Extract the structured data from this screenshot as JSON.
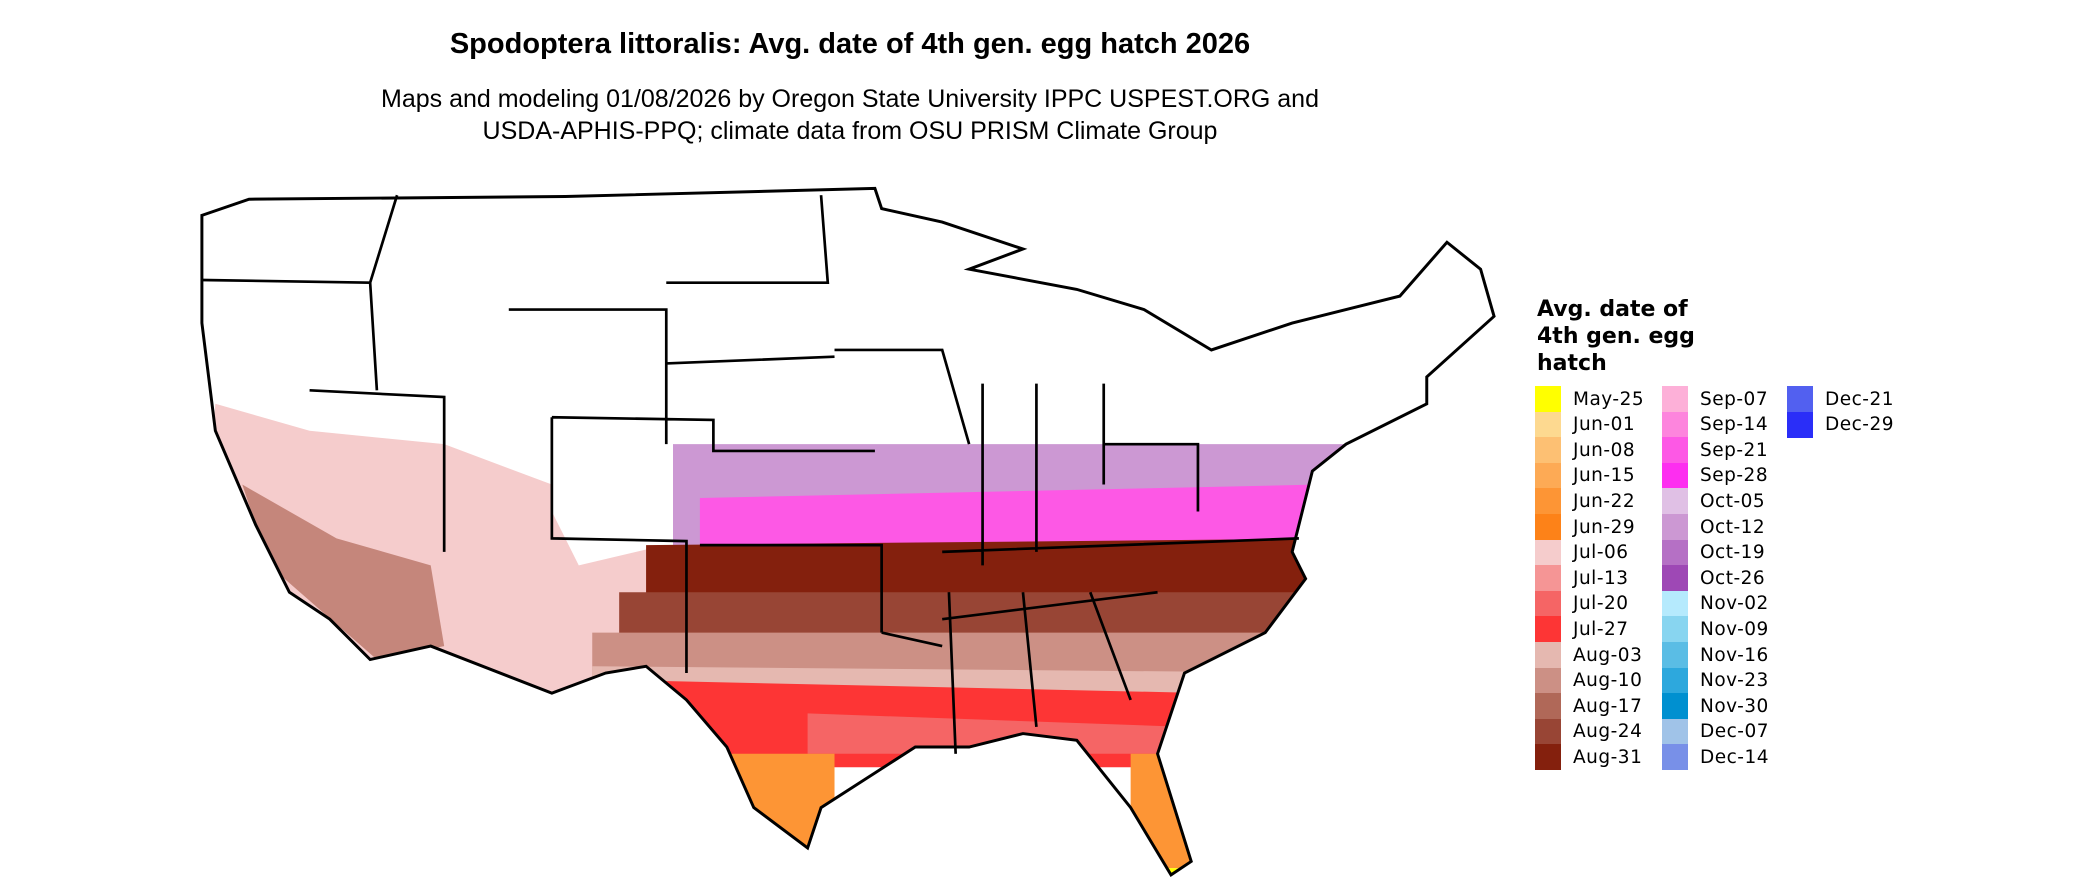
{
  "title": "Spodoptera littoralis: Avg. date of 4th gen. egg hatch 2026",
  "subtitle": [
    "Maps and modeling 01/08/2026 by Oregon State University IPPC USPEST.ORG and",
    "USDA-APHIS-PPQ; climate data from OSU PRISM Climate Group"
  ],
  "legend": {
    "title": [
      "Avg. date of",
      "4th gen. egg",
      "hatch"
    ],
    "items": [
      {
        "label": "May-25",
        "color": "#FFFF00"
      },
      {
        "label": "Jun-01",
        "color": "#FDD990"
      },
      {
        "label": "Jun-08",
        "color": "#FDC073"
      },
      {
        "label": "Jun-15",
        "color": "#FDAA55"
      },
      {
        "label": "Jun-22",
        "color": "#FD9535"
      },
      {
        "label": "Jun-29",
        "color": "#FD8218"
      },
      {
        "label": "Jul-06",
        "color": "#F5CCCC"
      },
      {
        "label": "Jul-13",
        "color": "#F59595"
      },
      {
        "label": "Jul-20",
        "color": "#F56565"
      },
      {
        "label": "Jul-27",
        "color": "#FD3535"
      },
      {
        "label": "Aug-03",
        "color": "#E5B8B0"
      },
      {
        "label": "Aug-10",
        "color": "#CC9085"
      },
      {
        "label": "Aug-17",
        "color": "#B06858"
      },
      {
        "label": "Aug-24",
        "color": "#984535"
      },
      {
        "label": "Aug-31",
        "color": "#84200D"
      },
      {
        "label": "Sep-07",
        "color": "#FDB0D8"
      },
      {
        "label": "Sep-14",
        "color": "#FD85DD"
      },
      {
        "label": "Sep-21",
        "color": "#FD58E5"
      },
      {
        "label": "Sep-28",
        "color": "#FD2EF0"
      },
      {
        "label": "Oct-05",
        "color": "#E0C0E5"
      },
      {
        "label": "Oct-12",
        "color": "#CC98D3"
      },
      {
        "label": "Oct-19",
        "color": "#B570C5"
      },
      {
        "label": "Oct-26",
        "color": "#9E48B5"
      },
      {
        "label": "Nov-02",
        "color": "#B5EAFD"
      },
      {
        "label": "Nov-09",
        "color": "#88D5F0"
      },
      {
        "label": "Nov-16",
        "color": "#5ABDE5"
      },
      {
        "label": "Nov-23",
        "color": "#2DA8DD"
      },
      {
        "label": "Nov-30",
        "color": "#0090D0"
      },
      {
        "label": "Dec-07",
        "color": "#A0C3E8"
      },
      {
        "label": "Dec-14",
        "color": "#7890E8"
      },
      {
        "label": "Dec-21",
        "color": "#5260F0"
      },
      {
        "label": "Dec-29",
        "color": "#2A2EF8"
      }
    ]
  }
}
